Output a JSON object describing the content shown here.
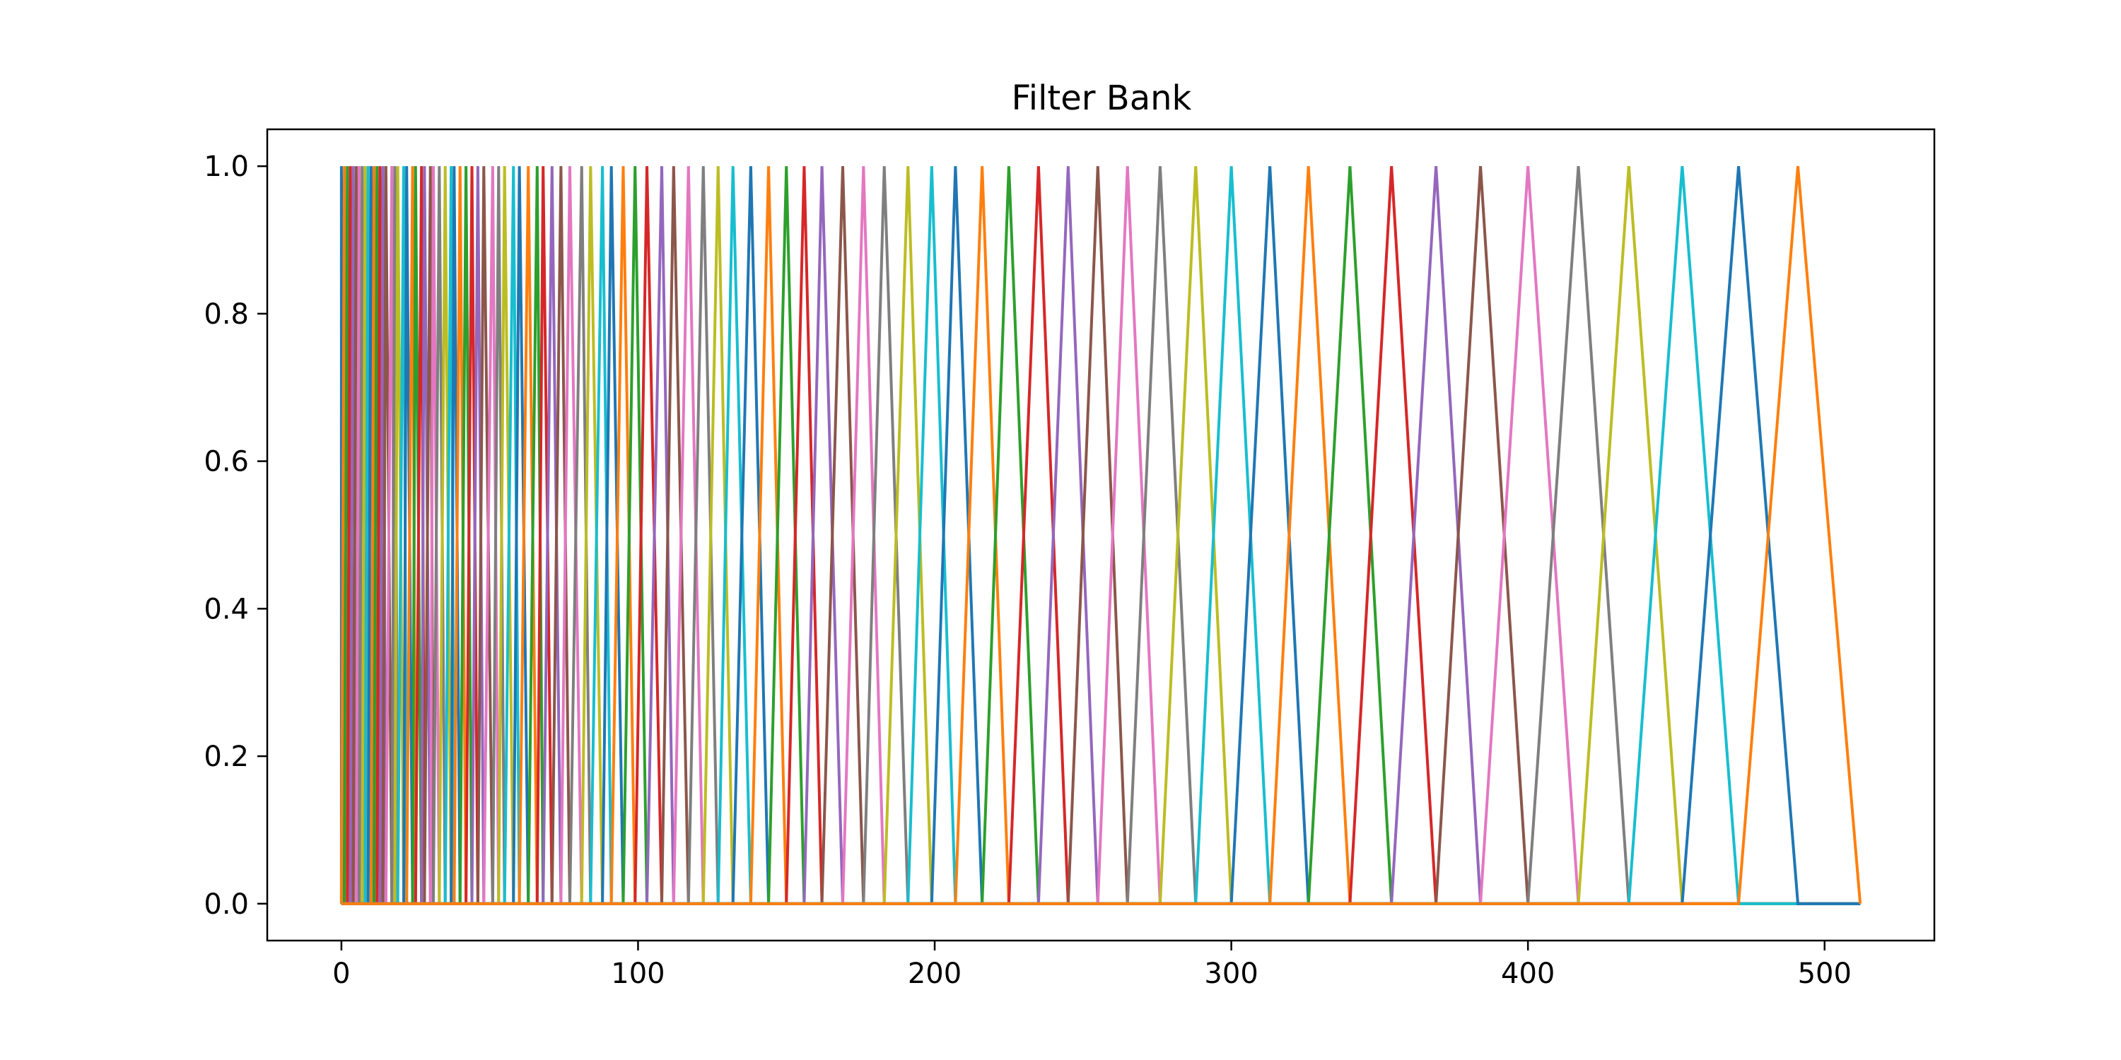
{
  "chart_data": {
    "type": "line",
    "title": "Filter Bank",
    "xlabel": "",
    "ylabel": "",
    "xlim": [
      -25,
      537
    ],
    "ylim": [
      -0.05,
      1.05
    ],
    "xticks": [
      0,
      100,
      200,
      300,
      400,
      500
    ],
    "xtick_labels": [
      "0",
      "100",
      "200",
      "300",
      "400",
      "500"
    ],
    "yticks": [
      0.0,
      0.2,
      0.4,
      0.6,
      0.8,
      1.0
    ],
    "ytick_labels": [
      "0.0",
      "0.2",
      "0.4",
      "0.6",
      "0.8",
      "1.0"
    ],
    "grid": false,
    "legend": false,
    "x_end": 512,
    "colors": [
      "#1f77b4",
      "#ff7f0e",
      "#2ca02c",
      "#d62728",
      "#9467bd",
      "#8c564b",
      "#e377c2",
      "#7f7f7f",
      "#bcbd22",
      "#17becf"
    ],
    "filter_peaks": [
      0,
      1,
      2,
      3,
      4,
      5,
      6,
      7,
      8,
      9,
      10,
      11,
      12,
      13,
      14,
      15,
      17,
      18,
      19,
      21,
      22,
      24,
      25,
      27,
      28,
      30,
      31,
      33,
      35,
      37,
      38,
      40,
      42,
      44,
      46,
      48,
      51,
      53,
      55,
      58,
      60,
      63,
      66,
      68,
      71,
      74,
      77,
      81,
      84,
      88,
      91,
      95,
      99,
      103,
      108,
      112,
      117,
      122,
      127,
      132,
      138,
      144,
      150,
      156,
      162,
      169,
      176,
      183,
      191,
      199,
      207,
      216,
      225,
      235,
      245,
      255,
      265,
      276,
      288,
      300,
      313,
      326,
      340,
      354,
      369,
      384,
      400,
      417,
      434,
      452,
      471,
      491,
      512
    ]
  }
}
